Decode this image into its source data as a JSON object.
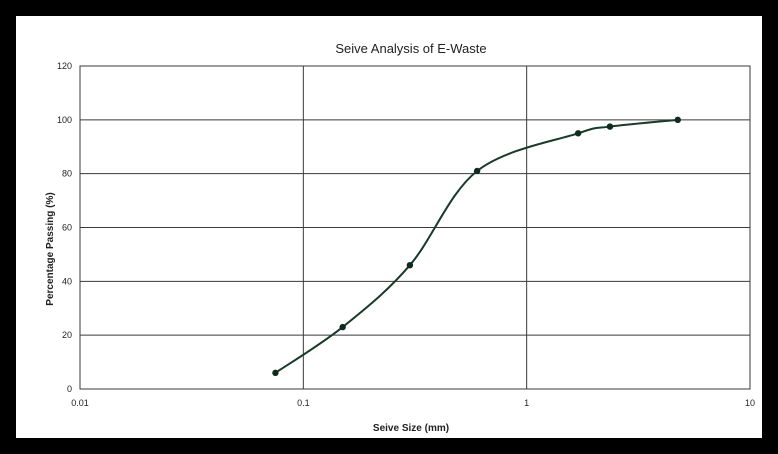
{
  "chart_data": {
    "type": "scatter",
    "title": "Seive Analysis of E-Waste",
    "xlabel": "Seive Size (mm)",
    "ylabel": "Percentage Passing (%)",
    "x_scale": "log",
    "xlim": [
      0.01,
      10
    ],
    "ylim": [
      0,
      120
    ],
    "x_ticks": [
      "0.01",
      "0.1",
      "1",
      "10"
    ],
    "y_ticks": [
      "0",
      "20",
      "40",
      "60",
      "80",
      "100",
      "120"
    ],
    "grid": true,
    "legend": "none",
    "smooth_line": true,
    "series": [
      {
        "x": [
          0.075,
          0.15,
          0.3,
          0.6,
          1.7,
          2.36,
          4.75
        ],
        "y": [
          6,
          23,
          46,
          81,
          95,
          97.5,
          100
        ]
      }
    ],
    "colors": {
      "line": "#1a3a2a",
      "marker": "#0f2a1e",
      "grid": "#3a3a3a"
    }
  }
}
